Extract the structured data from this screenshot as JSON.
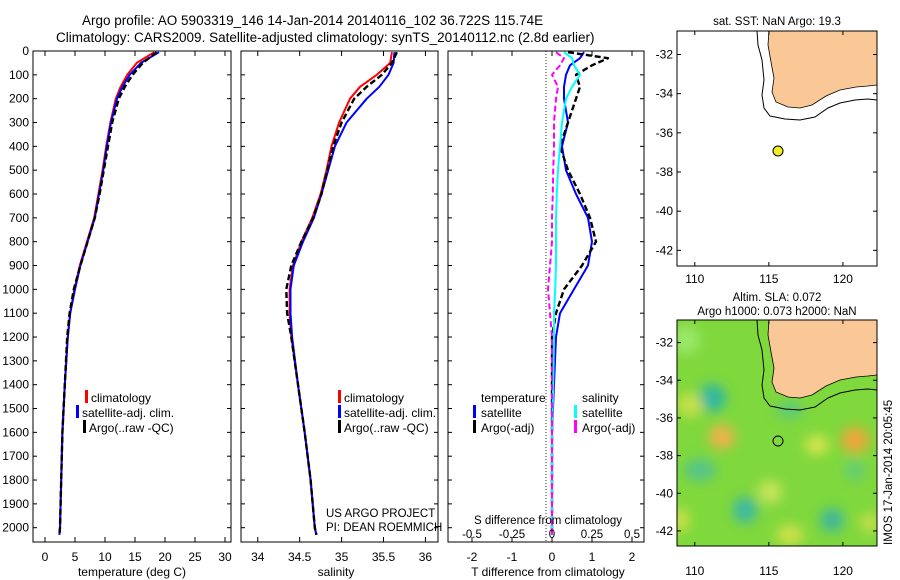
{
  "title": {
    "line1": "Argo profile: AO 5903319_146 14-Jan-2014 20140116_102 36.722S 115.74E",
    "line2": "Climatology: CARS2009. Satellite-adjusted climatology: synTS_20140112.nc (2.8d earlier)"
  },
  "project": {
    "line1": "US ARGO PROJECT",
    "line2": "PI: DEAN ROEMMICH"
  },
  "side_stamp": "IMOS 17-Jan-2014 20:05:45",
  "colors": {
    "red": "#ff0000",
    "blue": "#0000ff",
    "black": "#000000",
    "cyan": "#00ffff",
    "magenta": "#ff00ff",
    "land": "#fac896",
    "marker_yellow": "#eeee22"
  },
  "chart_data": [
    {
      "id": "temperature",
      "type": "line",
      "xlabel": "temperature (deg C)",
      "xlim": [
        -2,
        31
      ],
      "ylim": [
        2060,
        0
      ],
      "xticks": [
        0,
        5,
        10,
        15,
        20,
        25,
        30
      ],
      "yticks": [
        0,
        100,
        200,
        300,
        400,
        500,
        600,
        700,
        800,
        900,
        1000,
        1100,
        1200,
        1300,
        1400,
        1500,
        1600,
        1700,
        1800,
        1900,
        2000
      ],
      "legend": [
        "climatology",
        "satellite-adj. clim.",
        "Argo(..raw -QC)"
      ],
      "depth": [
        5,
        50,
        100,
        150,
        200,
        300,
        400,
        500,
        600,
        700,
        800,
        900,
        1000,
        1100,
        1200,
        1400,
        1600,
        1800,
        2000,
        2030
      ],
      "series": [
        {
          "name": "climatology",
          "color": "red",
          "dash": false,
          "values": [
            18.2,
            15.3,
            13.7,
            12.6,
            11.8,
            10.9,
            10.2,
            9.6,
            8.9,
            8.2,
            7.0,
            5.8,
            4.9,
            4.2,
            3.8,
            3.3,
            2.9,
            2.7,
            2.5,
            2.4
          ]
        },
        {
          "name": "satellite-adj. clim.",
          "color": "blue",
          "dash": false,
          "values": [
            19.0,
            16.0,
            14.1,
            12.9,
            12.0,
            11.0,
            10.3,
            9.7,
            9.0,
            8.3,
            7.1,
            5.9,
            5.0,
            4.2,
            3.8,
            3.3,
            2.9,
            2.7,
            2.5,
            2.4
          ]
        },
        {
          "name": "Argo(..raw -QC)",
          "color": "black",
          "dash": true,
          "values": [
            18.6,
            16.3,
            14.6,
            13.3,
            12.3,
            11.2,
            10.5,
            9.8,
            9.1,
            8.3,
            7.1,
            5.9,
            4.8,
            4.1,
            3.7,
            3.3,
            2.9,
            2.7,
            2.5,
            2.4
          ]
        }
      ]
    },
    {
      "id": "salinity",
      "type": "line",
      "xlabel": "salinity",
      "xlim": [
        33.8,
        36.15
      ],
      "ylim": [
        2060,
        0
      ],
      "xticks": [
        34,
        34.5,
        35,
        35.5,
        36
      ],
      "legend": [
        "climatology",
        "satellite-adj. clim.",
        "Argo(..raw -QC)"
      ],
      "depth": [
        5,
        50,
        100,
        150,
        200,
        300,
        400,
        500,
        600,
        700,
        800,
        900,
        1000,
        1100,
        1200,
        1400,
        1600,
        1800,
        2000,
        2030
      ],
      "series": [
        {
          "name": "climatology",
          "color": "red",
          "dash": false,
          "values": [
            35.6,
            35.58,
            35.42,
            35.22,
            35.1,
            34.97,
            34.88,
            34.82,
            34.75,
            34.65,
            34.52,
            34.42,
            34.38,
            34.38,
            34.4,
            34.48,
            34.56,
            34.63,
            34.68,
            34.7
          ]
        },
        {
          "name": "satellite-adj. clim.",
          "color": "blue",
          "dash": false,
          "values": [
            35.63,
            35.62,
            35.56,
            35.45,
            35.3,
            35.06,
            34.92,
            34.84,
            34.76,
            34.67,
            34.54,
            34.43,
            34.39,
            34.39,
            34.41,
            34.48,
            34.56,
            34.63,
            34.68,
            34.7
          ]
        },
        {
          "name": "Argo(..raw -QC)",
          "color": "black",
          "dash": true,
          "values": [
            35.66,
            35.6,
            35.48,
            35.3,
            35.15,
            35.0,
            34.9,
            34.83,
            34.76,
            34.66,
            34.52,
            34.4,
            34.34,
            34.35,
            34.4,
            34.48,
            34.56,
            34.63,
            34.68,
            34.7
          ]
        }
      ]
    },
    {
      "id": "difference",
      "type": "line",
      "xlabel": "T difference from climatology",
      "xlabel_top": "S difference from climatology",
      "xlim": [
        -2.6,
        2.3
      ],
      "ylim": [
        2060,
        0
      ],
      "xticks": [
        -2,
        -1,
        0,
        1,
        2
      ],
      "sticks_labels": [
        "-0.5",
        "-0.25",
        "0",
        "0.25",
        "0.5"
      ],
      "legend_titles": [
        "temperature",
        "salinity"
      ],
      "legend": [
        "satellite",
        "Argo(-adj)",
        "satellite",
        "Argo(-adj)"
      ],
      "depth": [
        5,
        30,
        60,
        100,
        150,
        200,
        300,
        400,
        500,
        600,
        700,
        800,
        900,
        1000,
        1100,
        1200,
        1400,
        1600,
        1800,
        2000,
        2030
      ],
      "series": [
        {
          "name": "temperature satellite",
          "color": "blue",
          "dash": false,
          "values": [
            0.8,
            0.7,
            0.45,
            0.35,
            0.3,
            0.3,
            0.4,
            0.25,
            0.35,
            0.6,
            0.9,
            1.0,
            0.9,
            0.55,
            0.2,
            0.1,
            0.05,
            0.0,
            0.0,
            0.0,
            0.0
          ]
        },
        {
          "name": "temperature Argo(-adj)",
          "color": "black",
          "dash": true,
          "values": [
            0.4,
            1.4,
            1.0,
            0.6,
            0.7,
            0.6,
            0.4,
            0.2,
            0.4,
            0.7,
            0.95,
            1.1,
            0.75,
            0.3,
            0.1,
            0.0,
            0.0,
            0.0,
            0.0,
            0.0,
            0.0
          ]
        },
        {
          "name": "salinity satellite",
          "color": "cyan",
          "dash": false,
          "values": [
            0.3,
            0.5,
            0.55,
            0.7,
            0.5,
            0.35,
            0.25,
            0.2,
            0.15,
            0.12,
            0.1,
            0.1,
            0.1,
            0.08,
            0.05,
            0.05,
            0.03,
            0.0,
            0.0,
            0.0,
            0.0
          ]
        },
        {
          "name": "salinity Argo(-adj)",
          "color": "magenta",
          "dash": true,
          "values": [
            0.1,
            0.3,
            0.2,
            0.0,
            0.15,
            0.1,
            0.05,
            0.05,
            0.03,
            0.02,
            0.0,
            0.0,
            -0.05,
            -0.1,
            -0.05,
            0.0,
            0.0,
            0.0,
            0.0,
            0.0,
            0.0
          ]
        }
      ]
    },
    {
      "id": "sst_map",
      "type": "scatter",
      "title": "sat. SST: NaN Argo: 19.3",
      "xlim": [
        108.8,
        122.3
      ],
      "ylim": [
        -42.8,
        -30.8
      ],
      "xticks": [
        110,
        115,
        120
      ],
      "yticks": [
        -32,
        -34,
        -36,
        -38,
        -40,
        -42
      ],
      "argo_position": {
        "lon": 115.74,
        "lat": -36.72
      }
    },
    {
      "id": "sla_map",
      "type": "heatmap",
      "title": "Altim. SLA: 0.072",
      "subtitle": "Argo h1000: 0.073 h2000: NaN",
      "xlim": [
        108.8,
        122.3
      ],
      "ylim": [
        -42.8,
        -30.8
      ],
      "xticks": [
        110,
        115,
        120
      ],
      "yticks": [
        -32,
        -34,
        -36,
        -38,
        -40,
        -42
      ],
      "argo_position": {
        "lon": 115.74,
        "lat": -36.72
      }
    }
  ]
}
